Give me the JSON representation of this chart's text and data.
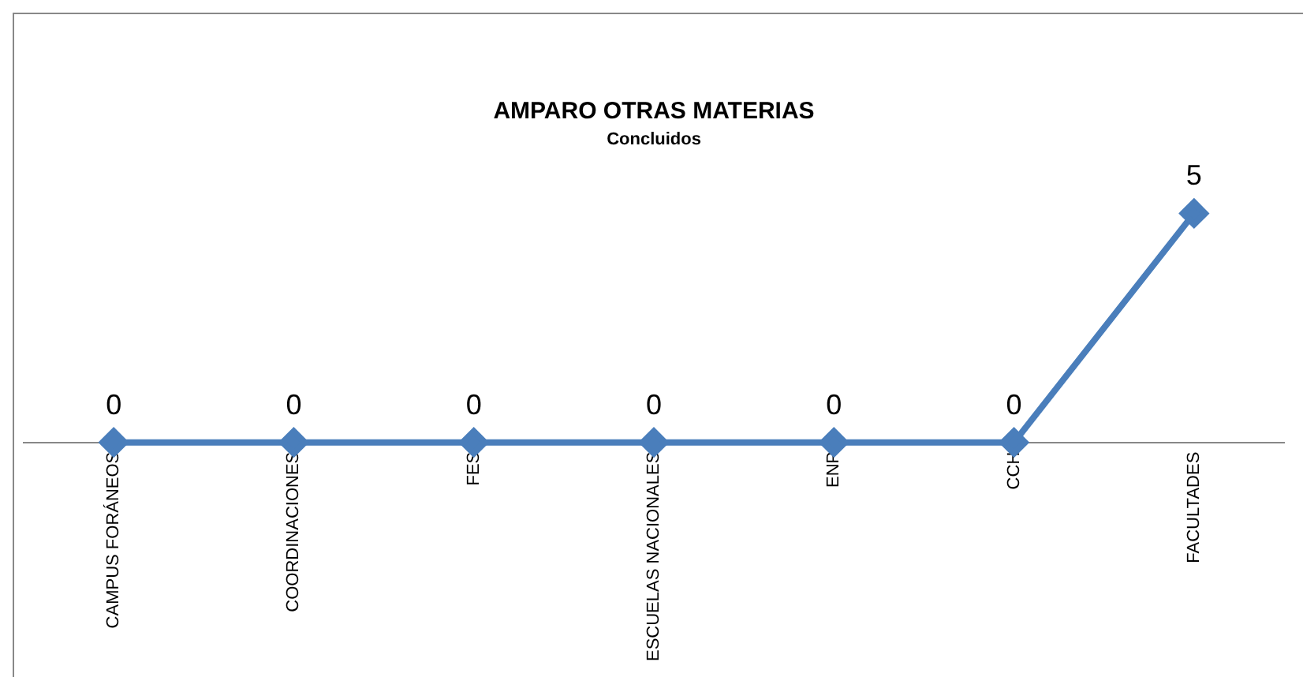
{
  "chart_data": {
    "type": "line",
    "title": "AMPARO OTRAS MATERIAS",
    "subtitle": "Concluidos",
    "categories": [
      "CAMPUS FORÁNEOS",
      "COORDINACIONES",
      "FES",
      "ESCUELAS NACIONALES",
      "ENP",
      "CCH",
      "FACULTADES"
    ],
    "values": [
      0,
      0,
      0,
      0,
      0,
      0,
      5
    ],
    "color": "#4a7ebb",
    "marker": "diamond",
    "data_labels": true,
    "grid": false,
    "legend": false
  }
}
